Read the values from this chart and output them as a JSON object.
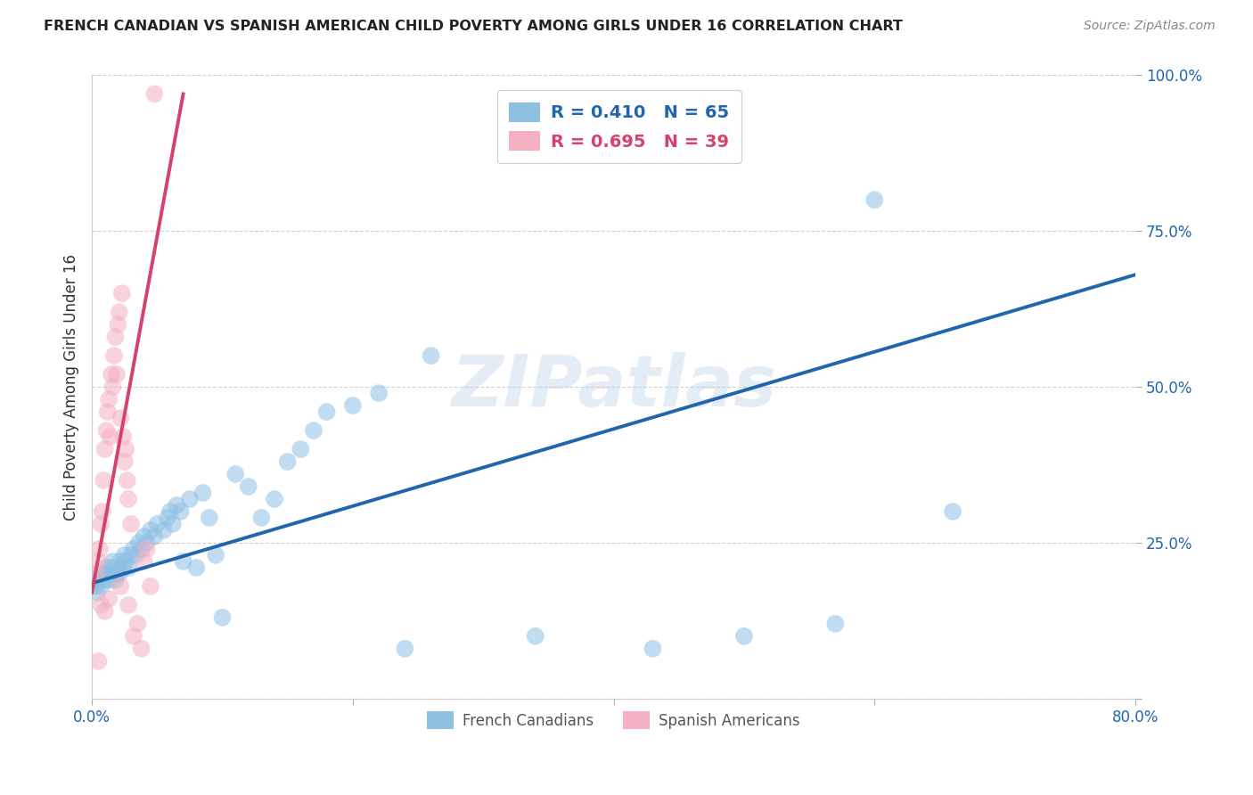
{
  "title": "FRENCH CANADIAN VS SPANISH AMERICAN CHILD POVERTY AMONG GIRLS UNDER 16 CORRELATION CHART",
  "source": "Source: ZipAtlas.com",
  "ylabel": "Child Poverty Among Girls Under 16",
  "xlim": [
    0.0,
    0.8
  ],
  "ylim": [
    0.0,
    1.0
  ],
  "grid_color": "#cccccc",
  "background_color": "#ffffff",
  "blue_color": "#8ec0e4",
  "pink_color": "#f4afc0",
  "blue_line_color": "#2166ac",
  "pink_line_color": "#d6426a",
  "blue_R": 0.41,
  "blue_N": 65,
  "pink_R": 0.695,
  "pink_N": 39,
  "watermark": "ZIPatlas",
  "legend_label_blue": "French Canadians",
  "legend_label_pink": "Spanish Americans",
  "blue_points": [
    [
      0.002,
      0.18
    ],
    [
      0.003,
      0.19
    ],
    [
      0.004,
      0.17
    ],
    [
      0.005,
      0.2
    ],
    [
      0.006,
      0.19
    ],
    [
      0.007,
      0.18
    ],
    [
      0.008,
      0.2
    ],
    [
      0.009,
      0.19
    ],
    [
      0.01,
      0.2
    ],
    [
      0.011,
      0.21
    ],
    [
      0.012,
      0.2
    ],
    [
      0.013,
      0.19
    ],
    [
      0.014,
      0.21
    ],
    [
      0.015,
      0.2
    ],
    [
      0.016,
      0.22
    ],
    [
      0.018,
      0.19
    ],
    [
      0.019,
      0.2
    ],
    [
      0.02,
      0.21
    ],
    [
      0.021,
      0.2
    ],
    [
      0.022,
      0.22
    ],
    [
      0.024,
      0.21
    ],
    [
      0.025,
      0.23
    ],
    [
      0.026,
      0.22
    ],
    [
      0.028,
      0.21
    ],
    [
      0.03,
      0.23
    ],
    [
      0.032,
      0.24
    ],
    [
      0.034,
      0.23
    ],
    [
      0.036,
      0.25
    ],
    [
      0.038,
      0.24
    ],
    [
      0.04,
      0.26
    ],
    [
      0.042,
      0.25
    ],
    [
      0.045,
      0.27
    ],
    [
      0.048,
      0.26
    ],
    [
      0.05,
      0.28
    ],
    [
      0.055,
      0.27
    ],
    [
      0.058,
      0.29
    ],
    [
      0.06,
      0.3
    ],
    [
      0.062,
      0.28
    ],
    [
      0.065,
      0.31
    ],
    [
      0.068,
      0.3
    ],
    [
      0.07,
      0.22
    ],
    [
      0.075,
      0.32
    ],
    [
      0.08,
      0.21
    ],
    [
      0.085,
      0.33
    ],
    [
      0.09,
      0.29
    ],
    [
      0.095,
      0.23
    ],
    [
      0.1,
      0.13
    ],
    [
      0.11,
      0.36
    ],
    [
      0.12,
      0.34
    ],
    [
      0.13,
      0.29
    ],
    [
      0.14,
      0.32
    ],
    [
      0.15,
      0.38
    ],
    [
      0.16,
      0.4
    ],
    [
      0.17,
      0.43
    ],
    [
      0.18,
      0.46
    ],
    [
      0.2,
      0.47
    ],
    [
      0.22,
      0.49
    ],
    [
      0.24,
      0.08
    ],
    [
      0.26,
      0.55
    ],
    [
      0.34,
      0.1
    ],
    [
      0.43,
      0.08
    ],
    [
      0.5,
      0.1
    ],
    [
      0.57,
      0.12
    ],
    [
      0.6,
      0.8
    ],
    [
      0.66,
      0.3
    ]
  ],
  "pink_points": [
    [
      0.003,
      0.2
    ],
    [
      0.005,
      0.22
    ],
    [
      0.006,
      0.24
    ],
    [
      0.007,
      0.28
    ],
    [
      0.008,
      0.3
    ],
    [
      0.009,
      0.35
    ],
    [
      0.01,
      0.4
    ],
    [
      0.011,
      0.43
    ],
    [
      0.012,
      0.46
    ],
    [
      0.013,
      0.48
    ],
    [
      0.014,
      0.42
    ],
    [
      0.015,
      0.52
    ],
    [
      0.016,
      0.5
    ],
    [
      0.017,
      0.55
    ],
    [
      0.018,
      0.58
    ],
    [
      0.019,
      0.52
    ],
    [
      0.02,
      0.6
    ],
    [
      0.021,
      0.62
    ],
    [
      0.022,
      0.45
    ],
    [
      0.023,
      0.65
    ],
    [
      0.024,
      0.42
    ],
    [
      0.025,
      0.38
    ],
    [
      0.026,
      0.4
    ],
    [
      0.027,
      0.35
    ],
    [
      0.028,
      0.32
    ],
    [
      0.03,
      0.28
    ],
    [
      0.032,
      0.1
    ],
    [
      0.035,
      0.12
    ],
    [
      0.038,
      0.08
    ],
    [
      0.04,
      0.22
    ],
    [
      0.042,
      0.24
    ],
    [
      0.045,
      0.18
    ],
    [
      0.007,
      0.15
    ],
    [
      0.01,
      0.14
    ],
    [
      0.013,
      0.16
    ],
    [
      0.022,
      0.18
    ],
    [
      0.028,
      0.15
    ],
    [
      0.005,
      0.06
    ],
    [
      0.048,
      0.97
    ]
  ],
  "pink_line_x": [
    0.0,
    0.07
  ],
  "pink_line_y": [
    0.17,
    0.97
  ],
  "blue_line_x": [
    0.0,
    0.8
  ],
  "blue_line_y": [
    0.185,
    0.68
  ]
}
